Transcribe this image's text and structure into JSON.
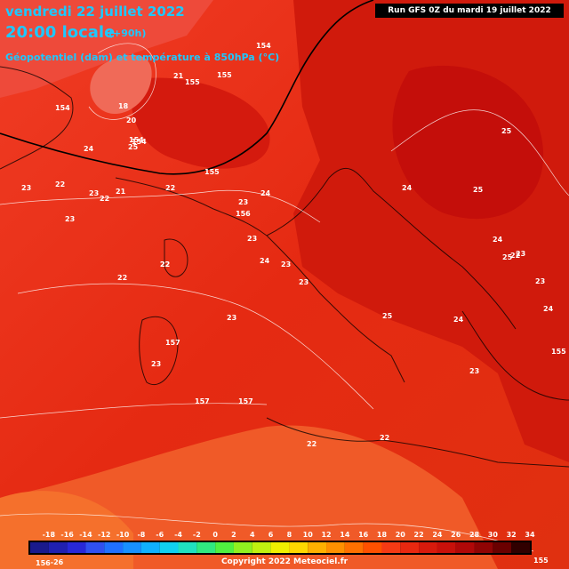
{
  "header": {
    "date": "vendredi 22 juillet 2022",
    "time": "20:00 locale",
    "lead": "(+90h)",
    "parameter": "Géopotentiel (dam) et température à 850hPa (°C)",
    "run": "Run GFS 0Z du mardi 19 juillet 2022"
  },
  "footer": {
    "copyright": "Copyright 2022 Meteociel.fr"
  },
  "colorbar": {
    "labels": [
      "-18",
      "-16",
      "-14",
      "-12",
      "-10",
      "-8",
      "-6",
      "-4",
      "-2",
      "0",
      "2",
      "4",
      "6",
      "8",
      "10",
      "12",
      "14",
      "16",
      "18",
      "20",
      "22",
      "24",
      "26",
      "28",
      "30",
      "32",
      "34"
    ],
    "colors": [
      "#1a1a8c",
      "#2020b0",
      "#2828d8",
      "#3050f0",
      "#2070ff",
      "#1890ff",
      "#10b0ff",
      "#10d0f0",
      "#20e0c0",
      "#30e880",
      "#50f040",
      "#90f020",
      "#c0f010",
      "#f0f000",
      "#ffd800",
      "#ffb000",
      "#ff9000",
      "#ff7000",
      "#ff5000",
      "#f53a14",
      "#e82810",
      "#d81a0c",
      "#c8100a",
      "#b00808",
      "#900404",
      "#6a0000",
      "#300000"
    ],
    "start_label": "-26"
  },
  "contour_labels": [
    "154",
    "155",
    "154",
    "23",
    "21",
    "23",
    "22",
    "155",
    "154",
    "18",
    "20",
    "25",
    "154",
    "24",
    "22",
    "21",
    "22",
    "23",
    "22",
    "155",
    "156",
    "23",
    "24",
    "23",
    "22",
    "22",
    "24",
    "23",
    "23",
    "25",
    "24",
    "25",
    "24",
    "25",
    "23",
    "24",
    "23",
    "24",
    "155",
    "157",
    "23",
    "23",
    "157",
    "157",
    "22",
    "22",
    "23",
    "25",
    "156",
    "155",
    "22"
  ]
}
